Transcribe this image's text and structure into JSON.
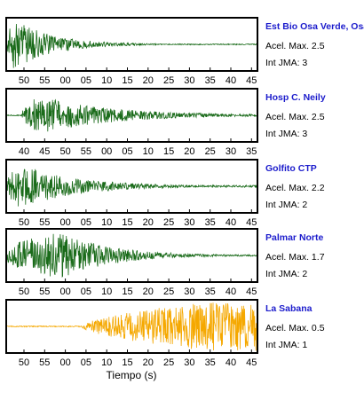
{
  "chart_data": {
    "type": "line",
    "xlabel": "Tiempo (s)",
    "colors": {
      "primary": "#1a6b1a",
      "highlight": "#f5a800",
      "station_text": "#1c1ccc"
    },
    "panels": [
      {
        "station": "Est Bio Osa Verde, Osa",
        "acel_label": "Acel. Max. 2.5",
        "jma_label": "Int JMA: 3",
        "acel_max": 2.5,
        "jma": 3,
        "color": "#1a6b1a",
        "tick_labels": [
          "50",
          "55",
          "00",
          "05",
          "10",
          "15",
          "20",
          "25",
          "30",
          "35",
          "40",
          "45"
        ],
        "waveform": {
          "onset": 0.0,
          "peak_offset": 0.03,
          "amplitude": 1.0,
          "decay": 6.5,
          "pre_noise": 0.01,
          "tail": 0.02
        }
      },
      {
        "station": "Hosp C. Neily",
        "acel_label": "Acel. Max. 2.5",
        "jma_label": "Int JMA: 3",
        "acel_max": 2.5,
        "jma": 3,
        "color": "#1a6b1a",
        "tick_labels": [
          "40",
          "45",
          "50",
          "55",
          "00",
          "05",
          "10",
          "15",
          "20",
          "25",
          "30",
          "35"
        ],
        "waveform": {
          "onset": 0.06,
          "peak_offset": 0.13,
          "amplitude": 0.75,
          "decay": 3.5,
          "pre_noise": 0.02,
          "tail": 0.04
        }
      },
      {
        "station": "Golfito CTP",
        "acel_label": "Acel. Max. 2.2",
        "jma_label": "Int JMA: 2",
        "acel_max": 2.2,
        "jma": 2,
        "color": "#1a6b1a",
        "tick_labels": [
          "50",
          "55",
          "00",
          "05",
          "10",
          "15",
          "20",
          "25",
          "30",
          "35",
          "40",
          "45"
        ],
        "waveform": {
          "onset": 0.0,
          "peak_offset": 0.05,
          "amplitude": 0.9,
          "decay": 4.5,
          "pre_noise": 0.02,
          "tail": 0.04
        }
      },
      {
        "station": "Palmar Norte",
        "acel_label": "Acel. Max. 1.7",
        "jma_label": "Int JMA: 2",
        "acel_max": 1.7,
        "jma": 2,
        "color": "#1a6b1a",
        "tick_labels": [
          "50",
          "55",
          "00",
          "05",
          "10",
          "15",
          "20",
          "25",
          "30",
          "35",
          "40",
          "45"
        ],
        "waveform": {
          "onset": 0.0,
          "peak_offset": 0.22,
          "amplitude": 0.9,
          "decay": 5.0,
          "pre_noise": 0.25,
          "tail": 0.03
        }
      },
      {
        "station": "La Sabana",
        "acel_label": "Acel. Max. 0.5",
        "jma_label": "Int JMA: 1",
        "acel_max": 0.5,
        "jma": 1,
        "color": "#f5a800",
        "tick_labels": [
          "50",
          "55",
          "00",
          "05",
          "10",
          "15",
          "20",
          "25",
          "30",
          "35",
          "40",
          "45"
        ],
        "waveform": {
          "onset": 0.3,
          "peak_offset": 0.8,
          "amplitude": 0.95,
          "decay": 0.0,
          "pre_noise": 0.02,
          "tail": 0.35
        }
      }
    ]
  }
}
